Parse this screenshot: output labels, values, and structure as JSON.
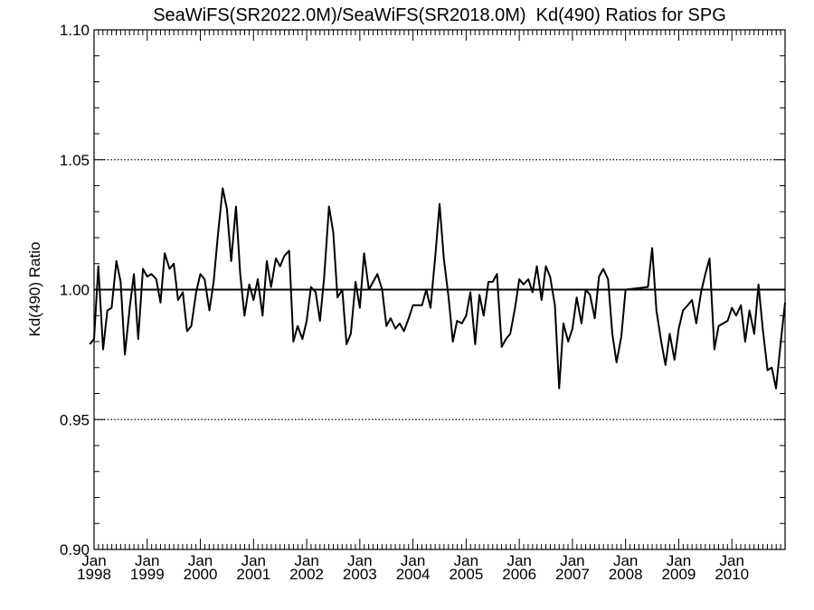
{
  "chart_data": {
    "type": "line",
    "title": "SeaWiFS(SR2022.0M)/SeaWiFS(SR2018.0M)  Kd(490) Ratios for SPG",
    "xlabel": "",
    "ylabel": "Kd(490) Ratio",
    "xlim": [
      1998.0,
      2011.0
    ],
    "ylim": [
      0.9,
      1.1
    ],
    "y_ticks": [
      0.9,
      0.95,
      1.0,
      1.05,
      1.1
    ],
    "y_tick_labels": [
      "0.90",
      "0.95",
      "1.00",
      "1.05",
      "1.10"
    ],
    "x_major_ticks": [
      {
        "month": "Jan",
        "year": "1998",
        "x": 1998.0
      },
      {
        "month": "Jan",
        "year": "1999",
        "x": 1999.0
      },
      {
        "month": "Jan",
        "year": "2000",
        "x": 2000.0
      },
      {
        "month": "Jan",
        "year": "2001",
        "x": 2001.0
      },
      {
        "month": "Jan",
        "year": "2002",
        "x": 2002.0
      },
      {
        "month": "Jan",
        "year": "2003",
        "x": 2003.0
      },
      {
        "month": "Jan",
        "year": "2004",
        "x": 2004.0
      },
      {
        "month": "Jan",
        "year": "2005",
        "x": 2005.0
      },
      {
        "month": "Jan",
        "year": "2006",
        "x": 2006.0
      },
      {
        "month": "Jan",
        "year": "2007",
        "x": 2007.0
      },
      {
        "month": "Jan",
        "year": "2008",
        "x": 2008.0
      },
      {
        "month": "Jan",
        "year": "2009",
        "x": 2009.0
      },
      {
        "month": "Jan",
        "year": "2010",
        "x": 2010.0
      }
    ],
    "dotted_reference_lines": [
      0.95,
      1.05
    ],
    "solid_reference_line": 1.0,
    "series": [
      {
        "values": [
          [
            1997.92,
            0.979
          ],
          [
            1998.0,
            0.981
          ],
          [
            1998.08,
            1.009
          ],
          [
            1998.17,
            0.977
          ],
          [
            1998.25,
            0.992
          ],
          [
            1998.33,
            0.993
          ],
          [
            1998.42,
            1.011
          ],
          [
            1998.5,
            1.003
          ],
          [
            1998.58,
            0.975
          ],
          [
            1998.67,
            0.993
          ],
          [
            1998.75,
            1.006
          ],
          [
            1998.83,
            0.981
          ],
          [
            1998.92,
            1.008
          ],
          [
            1999.0,
            1.005
          ],
          [
            1999.08,
            1.006
          ],
          [
            1999.17,
            1.004
          ],
          [
            1999.25,
            0.995
          ],
          [
            1999.33,
            1.014
          ],
          [
            1999.42,
            1.008
          ],
          [
            1999.5,
            1.01
          ],
          [
            1999.58,
            0.996
          ],
          [
            1999.67,
            0.999
          ],
          [
            1999.75,
            0.984
          ],
          [
            1999.83,
            0.986
          ],
          [
            1999.92,
            0.999
          ],
          [
            2000.0,
            1.006
          ],
          [
            2000.08,
            1.004
          ],
          [
            2000.17,
            0.992
          ],
          [
            2000.25,
            1.003
          ],
          [
            2000.33,
            1.021
          ],
          [
            2000.42,
            1.039
          ],
          [
            2000.5,
            1.031
          ],
          [
            2000.58,
            1.011
          ],
          [
            2000.67,
            1.032
          ],
          [
            2000.75,
            1.006
          ],
          [
            2000.83,
            0.99
          ],
          [
            2000.92,
            1.002
          ],
          [
            2001.0,
            0.996
          ],
          [
            2001.08,
            1.004
          ],
          [
            2001.17,
            0.99
          ],
          [
            2001.25,
            1.011
          ],
          [
            2001.33,
            1.001
          ],
          [
            2001.42,
            1.012
          ],
          [
            2001.5,
            1.009
          ],
          [
            2001.58,
            1.013
          ],
          [
            2001.67,
            1.015
          ],
          [
            2001.75,
            0.98
          ],
          [
            2001.83,
            0.986
          ],
          [
            2001.92,
            0.981
          ],
          [
            2002.0,
            0.988
          ],
          [
            2002.08,
            1.001
          ],
          [
            2002.17,
            0.999
          ],
          [
            2002.25,
            0.988
          ],
          [
            2002.33,
            1.005
          ],
          [
            2002.42,
            1.032
          ],
          [
            2002.5,
            1.022
          ],
          [
            2002.58,
            0.997
          ],
          [
            2002.67,
            1.0
          ],
          [
            2002.75,
            0.979
          ],
          [
            2002.83,
            0.983
          ],
          [
            2002.92,
            1.003
          ],
          [
            2003.0,
            0.993
          ],
          [
            2003.08,
            1.014
          ],
          [
            2003.17,
            1.0
          ],
          [
            2003.25,
            1.003
          ],
          [
            2003.33,
            1.006
          ],
          [
            2003.42,
            1.0
          ],
          [
            2003.5,
            0.986
          ],
          [
            2003.58,
            0.989
          ],
          [
            2003.67,
            0.985
          ],
          [
            2003.75,
            0.987
          ],
          [
            2003.83,
            0.984
          ],
          [
            2003.92,
            0.989
          ],
          [
            2004.0,
            0.994
          ],
          [
            2004.08,
            0.994
          ],
          [
            2004.17,
            0.994
          ],
          [
            2004.25,
            1.0
          ],
          [
            2004.33,
            0.993
          ],
          [
            2004.42,
            1.013
          ],
          [
            2004.5,
            1.033
          ],
          [
            2004.58,
            1.012
          ],
          [
            2004.67,
            0.997
          ],
          [
            2004.75,
            0.98
          ],
          [
            2004.83,
            0.988
          ],
          [
            2004.92,
            0.987
          ],
          [
            2005.0,
            0.99
          ],
          [
            2005.08,
            0.999
          ],
          [
            2005.17,
            0.979
          ],
          [
            2005.25,
            0.998
          ],
          [
            2005.33,
            0.99
          ],
          [
            2005.42,
            1.003
          ],
          [
            2005.5,
            1.003
          ],
          [
            2005.58,
            1.006
          ],
          [
            2005.67,
            0.978
          ],
          [
            2005.75,
            0.981
          ],
          [
            2005.83,
            0.983
          ],
          [
            2005.92,
            0.993
          ],
          [
            2006.0,
            1.004
          ],
          [
            2006.08,
            1.002
          ],
          [
            2006.17,
            1.004
          ],
          [
            2006.25,
            0.999
          ],
          [
            2006.33,
            1.009
          ],
          [
            2006.42,
            0.996
          ],
          [
            2006.5,
            1.009
          ],
          [
            2006.58,
            1.005
          ],
          [
            2006.67,
            0.994
          ],
          [
            2006.75,
            0.962
          ],
          [
            2006.83,
            0.987
          ],
          [
            2006.92,
            0.98
          ],
          [
            2007.0,
            0.985
          ],
          [
            2007.08,
            0.997
          ],
          [
            2007.17,
            0.987
          ],
          [
            2007.25,
            1.0
          ],
          [
            2007.33,
            0.998
          ],
          [
            2007.42,
            0.989
          ],
          [
            2007.5,
            1.005
          ],
          [
            2007.58,
            1.008
          ],
          [
            2007.67,
            1.004
          ],
          [
            2007.75,
            0.983
          ],
          [
            2007.83,
            0.972
          ],
          [
            2007.92,
            0.982
          ],
          [
            2008.0,
            1.0
          ],
          [
            2008.42,
            1.001
          ],
          [
            2008.5,
            1.016
          ],
          [
            2008.58,
            0.992
          ],
          [
            2008.67,
            0.98
          ],
          [
            2008.75,
            0.971
          ],
          [
            2008.83,
            0.983
          ],
          [
            2008.92,
            0.973
          ],
          [
            2009.0,
            0.985
          ],
          [
            2009.08,
            0.992
          ],
          [
            2009.17,
            0.994
          ],
          [
            2009.25,
            0.996
          ],
          [
            2009.33,
            0.987
          ],
          [
            2009.42,
            0.999
          ],
          [
            2009.5,
            1.006
          ],
          [
            2009.58,
            1.012
          ],
          [
            2009.67,
            0.977
          ],
          [
            2009.75,
            0.986
          ],
          [
            2009.92,
            0.988
          ],
          [
            2010.0,
            0.993
          ],
          [
            2010.08,
            0.99
          ],
          [
            2010.17,
            0.994
          ],
          [
            2010.25,
            0.98
          ],
          [
            2010.33,
            0.992
          ],
          [
            2010.42,
            0.983
          ],
          [
            2010.5,
            1.002
          ],
          [
            2010.58,
            0.985
          ],
          [
            2010.67,
            0.969
          ],
          [
            2010.75,
            0.97
          ],
          [
            2010.83,
            0.962
          ],
          [
            2010.92,
            0.98
          ],
          [
            2011.0,
            0.995
          ]
        ]
      }
    ],
    "grid": false,
    "legend": "none"
  }
}
